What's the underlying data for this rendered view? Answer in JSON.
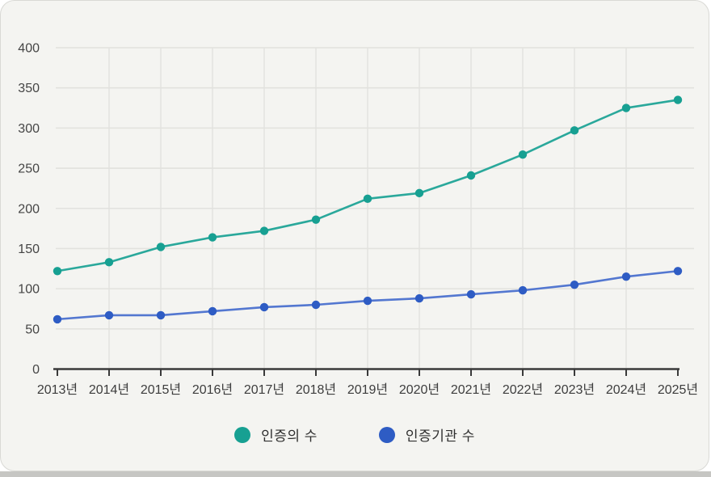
{
  "page": {
    "card_background": "#f4f4f1",
    "card_border_color": "#d9d9d5",
    "bottom_edge_color": "#c6c6c3"
  },
  "chart_data": {
    "type": "line",
    "title": "",
    "xlabel": "",
    "ylabel": "",
    "categories": [
      "2013년",
      "2014년",
      "2015년",
      "2016년",
      "2017년",
      "2018년",
      "2019년",
      "2020년",
      "2021년",
      "2022년",
      "2023년",
      "2024년",
      "2025년"
    ],
    "series": [
      {
        "name": "인증의 수",
        "marker_color": "#17a092",
        "line_color": "#2aa89b",
        "values": [
          122,
          133,
          152,
          164,
          172,
          186,
          212,
          219,
          241,
          267,
          297,
          325,
          335
        ]
      },
      {
        "name": "인증기관 수",
        "marker_color": "#2e5cc4",
        "line_color": "#5377d0",
        "values": [
          62,
          67,
          67,
          72,
          77,
          80,
          85,
          88,
          93,
          98,
          105,
          115,
          122
        ]
      }
    ],
    "ylim": [
      0,
      400
    ],
    "y_tick_step": 50,
    "y_tick_labels": [
      "0",
      "50",
      "100",
      "150",
      "200",
      "250",
      "300",
      "350",
      "400"
    ],
    "grid": true,
    "legend_position": "bottom",
    "axis_color": "#3a3a3a",
    "grid_color": "#e2e2de"
  }
}
